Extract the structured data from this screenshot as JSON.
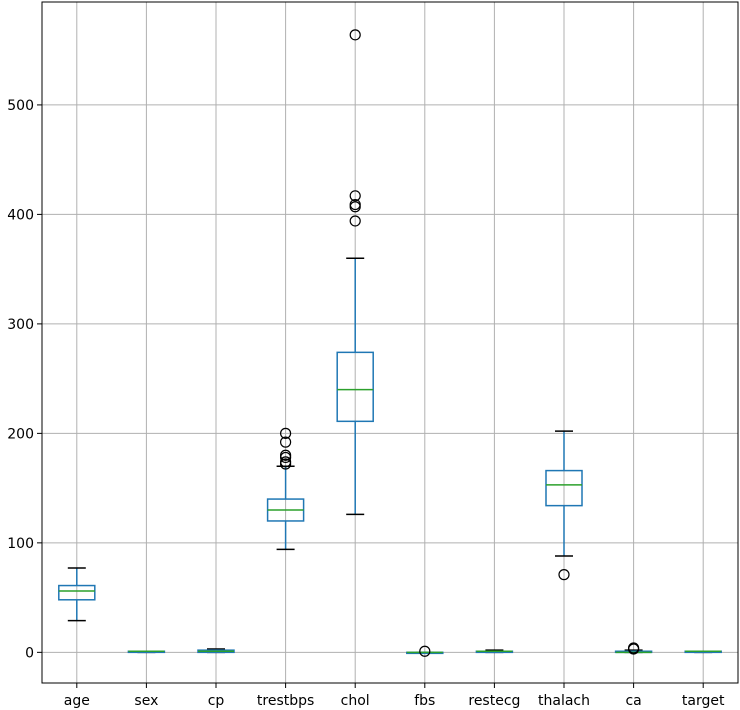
{
  "chart_data": {
    "type": "box",
    "title": "",
    "xlabel": "",
    "ylabel": "",
    "ylim": [
      -28,
      594
    ],
    "yticks": [
      0,
      100,
      200,
      300,
      400,
      500
    ],
    "grid": true,
    "colors": {
      "box": "#1f77b4",
      "median": "#2ca02c",
      "whisker_cap": "#000000",
      "grid": "#b0b0b0"
    },
    "categories": [
      "age",
      "sex",
      "cp",
      "trestbps",
      "chol",
      "fbs",
      "restecg",
      "thalach",
      "ca",
      "target"
    ],
    "boxes": [
      {
        "name": "age",
        "whislo": 29,
        "q1": 48,
        "med": 56,
        "q3": 61,
        "whishi": 77,
        "fliers": []
      },
      {
        "name": "sex",
        "whislo": 0,
        "q1": 0,
        "med": 1,
        "q3": 1,
        "whishi": 1,
        "fliers": []
      },
      {
        "name": "cp",
        "whislo": 0,
        "q1": 0,
        "med": 1,
        "q3": 2,
        "whishi": 3,
        "fliers": []
      },
      {
        "name": "trestbps",
        "whislo": 94,
        "q1": 120,
        "med": 130,
        "q3": 140,
        "whishi": 170,
        "fliers": [
          172,
          174,
          178,
          180,
          192,
          200
        ]
      },
      {
        "name": "chol",
        "whislo": 126,
        "q1": 211,
        "med": 240,
        "q3": 274,
        "whishi": 360,
        "fliers": [
          394,
          407,
          409,
          417,
          564
        ]
      },
      {
        "name": "fbs",
        "whislo": 0,
        "q1": 0,
        "med": 0,
        "q3": 0,
        "whishi": 0,
        "fliers": [
          1
        ]
      },
      {
        "name": "restecg",
        "whislo": 0,
        "q1": 0,
        "med": 1,
        "q3": 1,
        "whishi": 2,
        "fliers": []
      },
      {
        "name": "thalach",
        "whislo": 88,
        "q1": 134,
        "med": 153,
        "q3": 166,
        "whishi": 202,
        "fliers": [
          71
        ]
      },
      {
        "name": "ca",
        "whislo": 0,
        "q1": 0,
        "med": 0,
        "q3": 1,
        "whishi": 2,
        "fliers": [
          3,
          4
        ]
      },
      {
        "name": "target",
        "whislo": 0,
        "q1": 0,
        "med": 1,
        "q3": 1,
        "whishi": 1,
        "fliers": []
      }
    ]
  }
}
